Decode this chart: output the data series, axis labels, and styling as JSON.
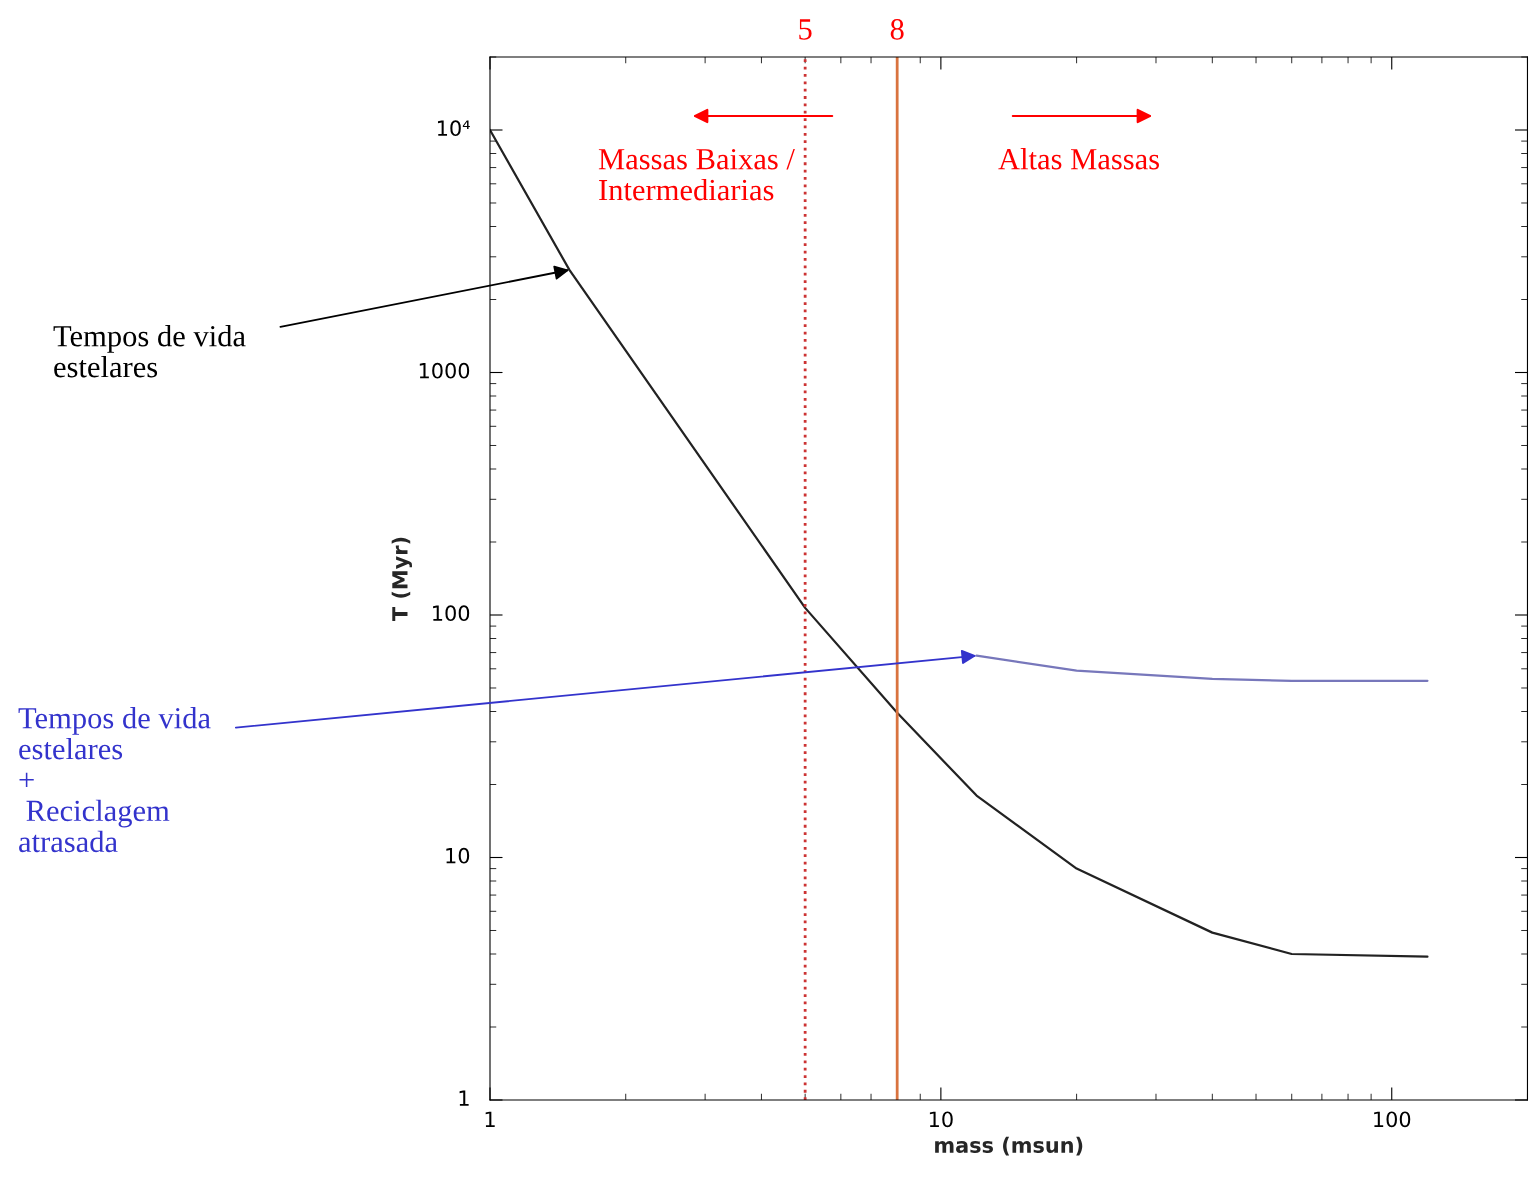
{
  "chart_data": {
    "type": "line",
    "xlabel": "mass (msun)",
    "ylabel": "T (Myr)",
    "x": [
      1,
      1.5,
      5,
      8,
      12,
      20,
      40,
      60,
      120
    ],
    "series": [
      {
        "color": "#222222",
        "values": [
          10000,
          2650,
          107,
          39.5,
          18,
          9.0,
          4.9,
          4.0,
          3.9
        ]
      },
      {
        "color": "#7777bb",
        "x": [
          12,
          20,
          40,
          60,
          120
        ],
        "values": [
          68,
          59,
          54.5,
          53.5,
          53.5
        ]
      }
    ],
    "log": "xy",
    "xlim": [
      1,
      200
    ],
    "ylim": [
      1,
      20000
    ],
    "xticks": [
      1,
      10,
      100
    ],
    "yticks": [
      1,
      10,
      100,
      1000,
      {
        "value": 10000,
        "label": "10⁴"
      }
    ],
    "grid": false,
    "legend": false,
    "ref_lines": [
      {
        "axis": "x",
        "value": 5,
        "label": "5",
        "color": "#cc3333",
        "line_style": "dotted"
      },
      {
        "axis": "x",
        "value": 8,
        "label": "8",
        "color": "#d9733f",
        "line_style": "solid"
      }
    ],
    "annotations": [
      "Massas Baixas /\nIntermediarias",
      "Altas Massas",
      {
        "text": "Tempos de vida\nestelares",
        "x": 1.5,
        "y": 2650
      },
      {
        "text": "Tempos de vida\nestelares\n+\n Reciclagem\natrasada",
        "x": 12,
        "y": 68
      }
    ]
  }
}
